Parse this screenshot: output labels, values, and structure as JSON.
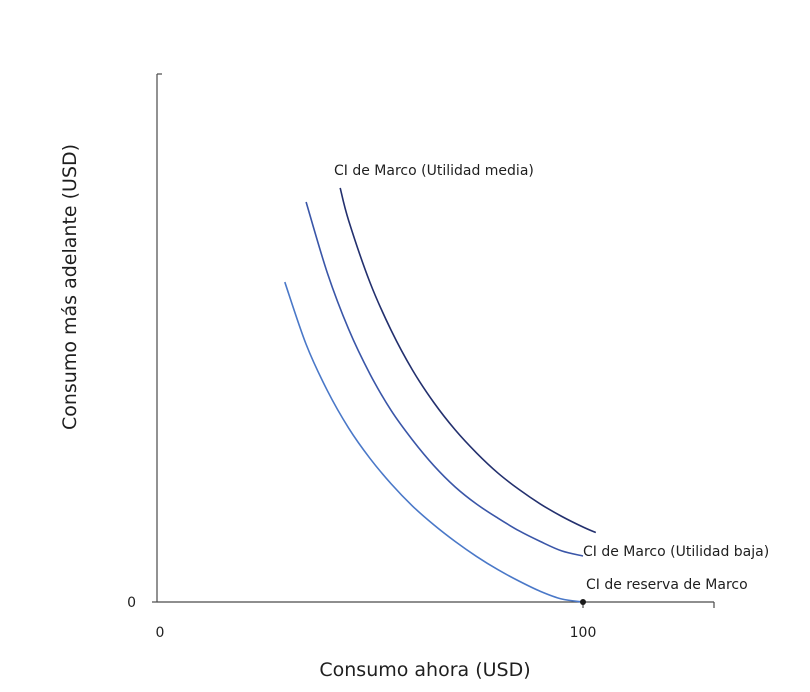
{
  "chart_data": {
    "type": "line",
    "title": "",
    "xlabel": "Consumo ahora (USD)",
    "ylabel": "Consumo más adelante (USD)",
    "xlim": [
      0,
      130
    ],
    "ylim": [
      0,
      125
    ],
    "x_ticks": [
      {
        "value": 0,
        "label": "0"
      },
      {
        "value": 100,
        "label": "100"
      }
    ],
    "y_ticks": [
      {
        "value": 0,
        "label": "0"
      }
    ],
    "grid": false,
    "legend": "none",
    "series": [
      {
        "name": "CI de reserva de Marco",
        "color": "#4a78c8",
        "x": [
          30,
          35,
          40,
          45,
          50,
          55,
          60,
          65,
          70,
          75,
          80,
          85,
          90,
          95,
          100
        ],
        "y": [
          75.1,
          60.5,
          49.6,
          40.8,
          33.7,
          27.7,
          22.5,
          18.1,
          14.2,
          10.7,
          7.6,
          4.9,
          2.5,
          0.7,
          0
        ]
      },
      {
        "name": "CI de Marco (Utilidad baja)",
        "color": "#3a56a8",
        "x": [
          35,
          40,
          45,
          50,
          55,
          60,
          65,
          70,
          75,
          80,
          85,
          90,
          95,
          100
        ],
        "y": [
          93.9,
          77.2,
          64.0,
          53.5,
          44.9,
          38.0,
          32.0,
          27.0,
          23.0,
          19.7,
          16.7,
          14.2,
          12.0,
          10.8
        ]
      },
      {
        "name": "CI de Marco (Utilidad media)",
        "color": "#23306e",
        "x": [
          43,
          45,
          50,
          55,
          60,
          65,
          70,
          75,
          80,
          85,
          90,
          95,
          100,
          103
        ],
        "y": [
          97.2,
          89.5,
          75.0,
          63.7,
          54.4,
          46.8,
          40.4,
          35.0,
          30.3,
          26.4,
          23.0,
          20.1,
          17.6,
          16.3
        ]
      }
    ],
    "points": [
      {
        "x": 100,
        "y": 0,
        "color": "#1a1a1a"
      }
    ]
  }
}
